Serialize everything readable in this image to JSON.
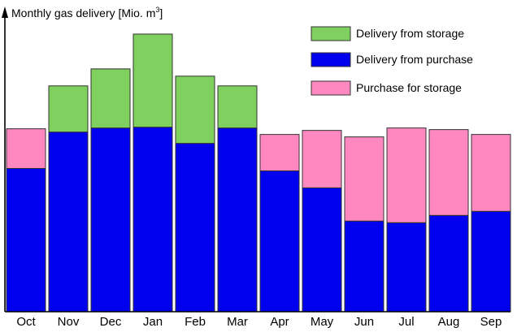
{
  "chart_data": {
    "type": "bar",
    "stacked": true,
    "title": "",
    "ylabel": "Monthly gas delivery [Mio. m",
    "ylabel_sup": "3",
    "ylabel_suffix": "]",
    "xlabel": "",
    "ylim": [
      0,
      350
    ],
    "grid": false,
    "legend_position": "top-right",
    "categories": [
      "Oct",
      "Nov",
      "Dec",
      "Jan",
      "Feb",
      "Mar",
      "Apr",
      "May",
      "Jun",
      "Jul",
      "Aug",
      "Sep"
    ],
    "series": [
      {
        "name": "Delivery from purchase",
        "color": "#0000ee",
        "values": [
          177,
          222,
          227,
          228,
          208,
          227,
          174,
          153,
          112,
          110,
          119,
          124
        ]
      },
      {
        "name": "Delivery from storage",
        "color": "#80d060",
        "values": [
          0,
          57,
          73,
          115,
          83,
          52,
          0,
          0,
          0,
          0,
          0,
          0
        ]
      },
      {
        "name": "Purchase for storage",
        "color": "#ff88c0",
        "values": [
          49,
          0,
          0,
          0,
          0,
          0,
          45,
          71,
          104,
          117,
          106,
          95
        ]
      }
    ]
  }
}
